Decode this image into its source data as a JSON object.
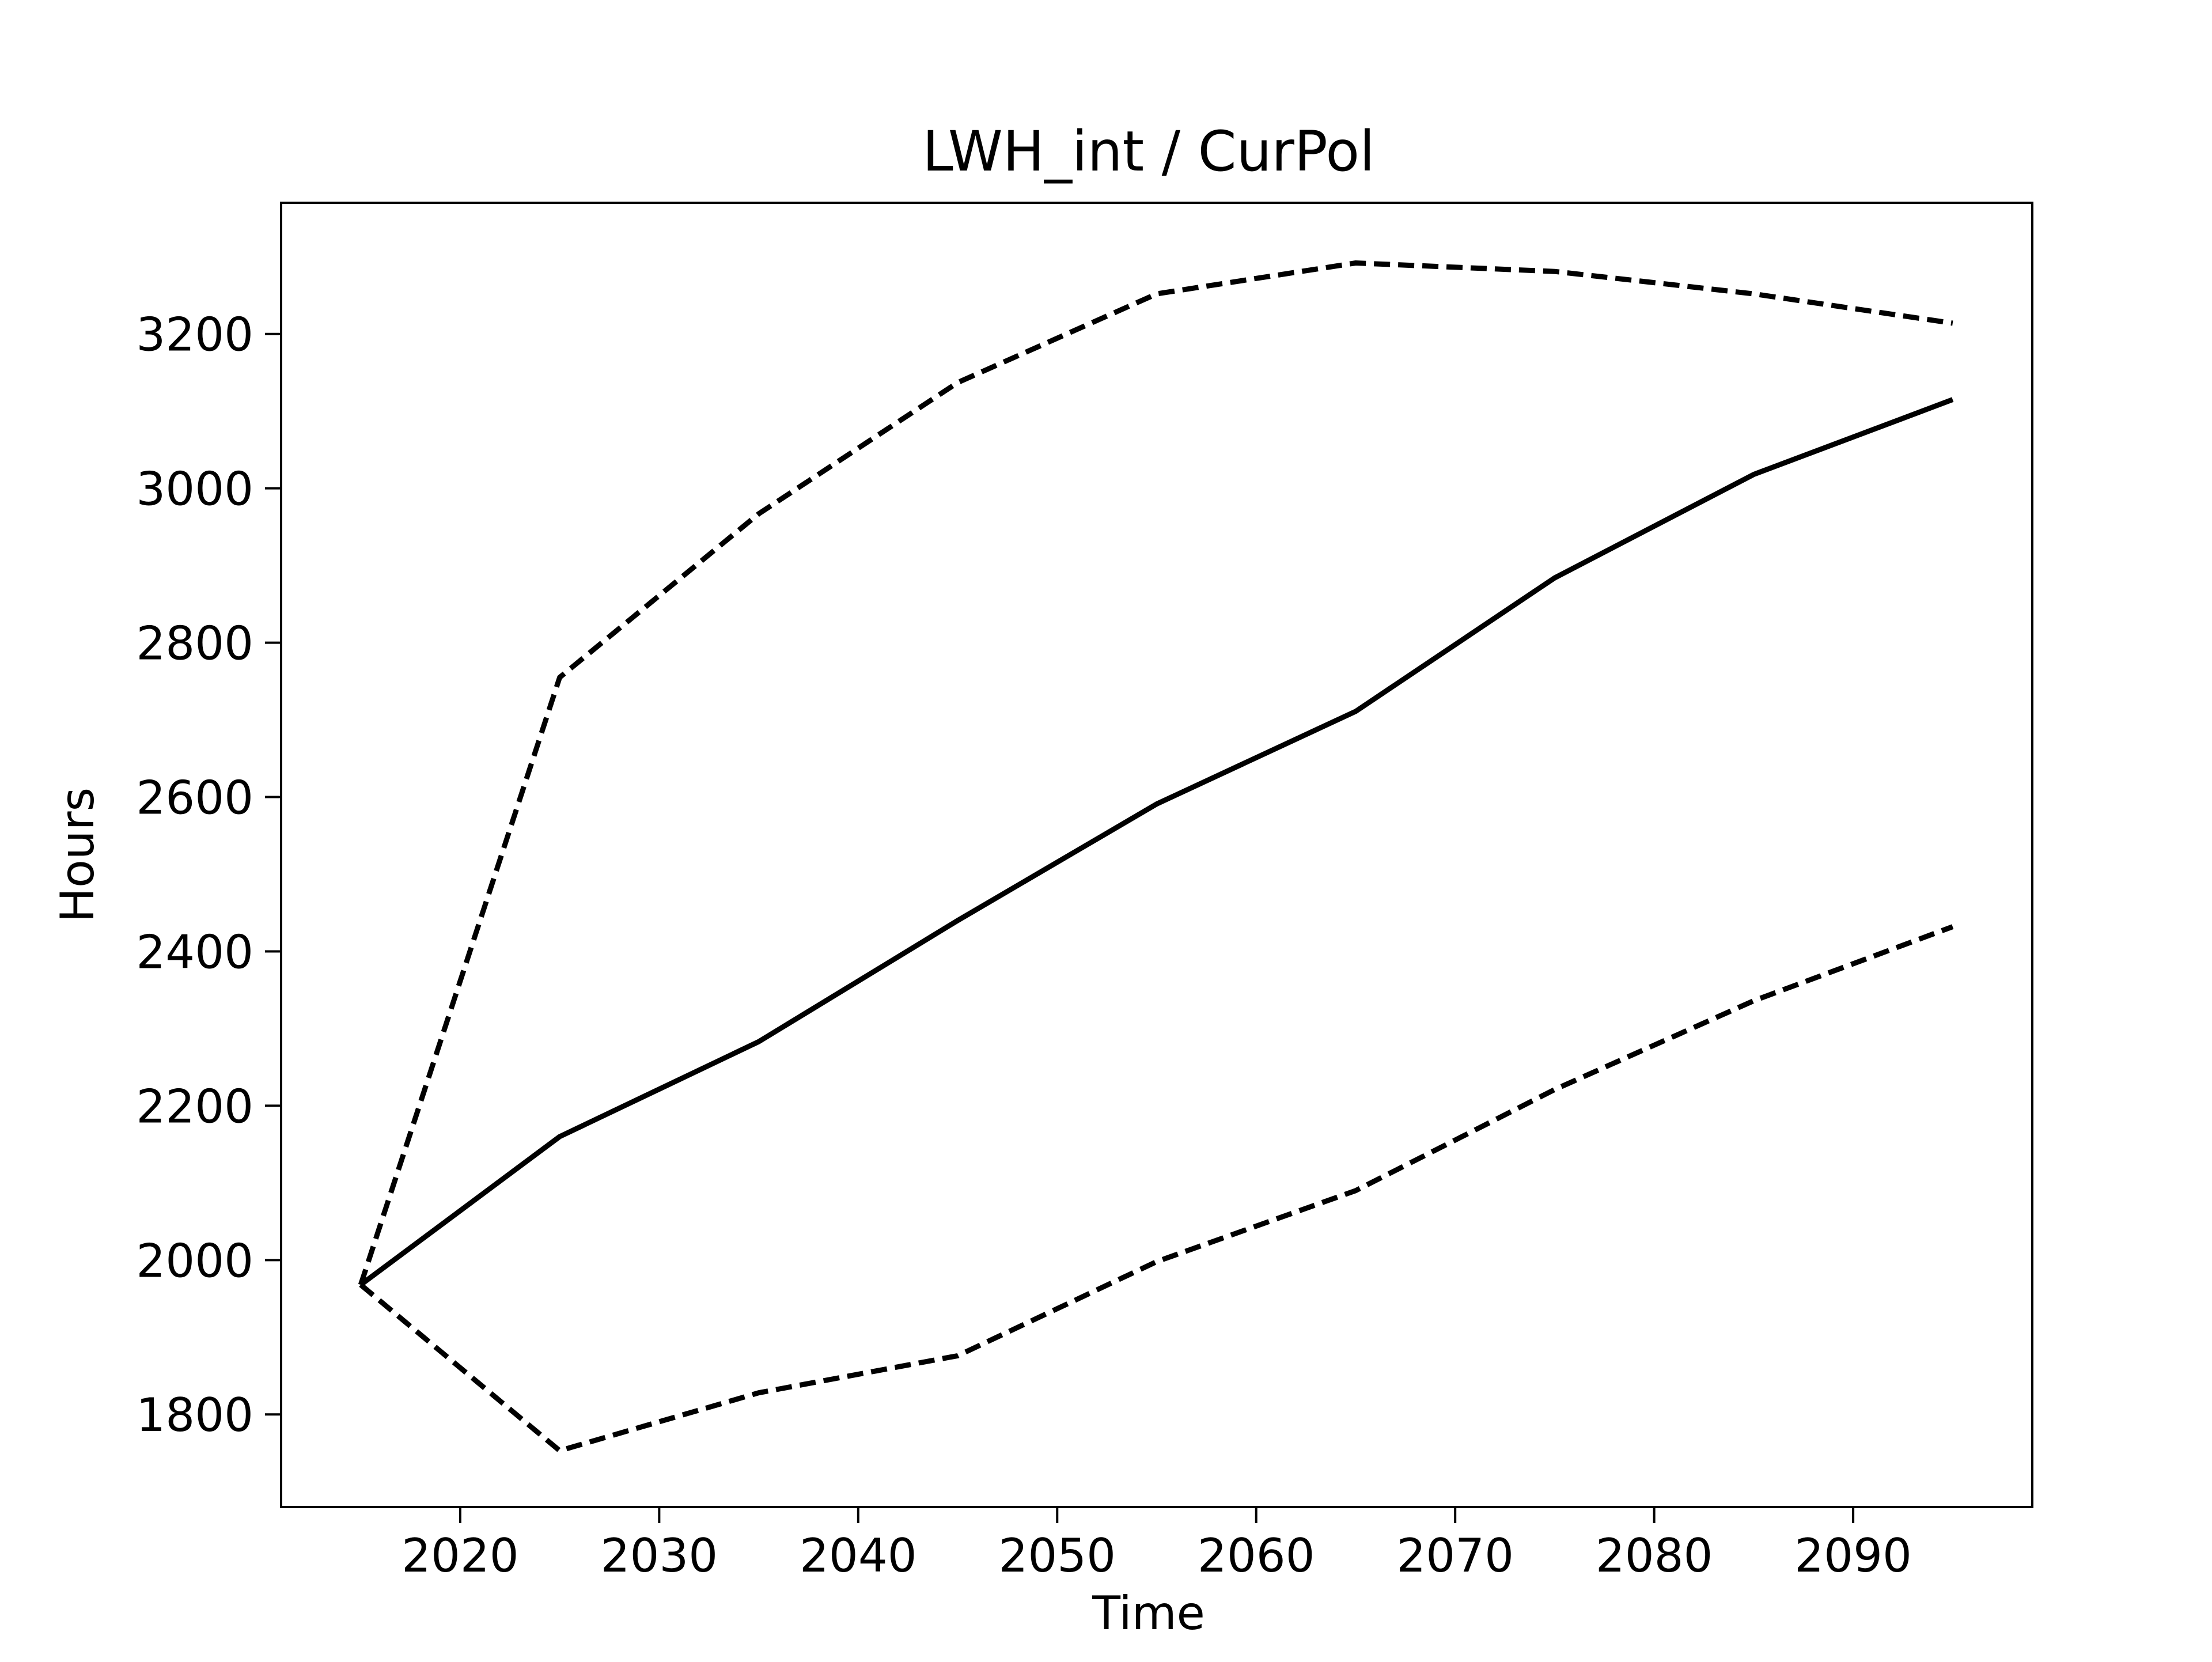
{
  "chart_data": {
    "type": "line",
    "title": "LWH_int / CurPol",
    "xlabel": "Time",
    "ylabel": "Hours",
    "xlim": [
      2011,
      2099
    ],
    "ylim": [
      1680,
      3370
    ],
    "xticks": [
      2020,
      2030,
      2040,
      2050,
      2060,
      2070,
      2080,
      2090
    ],
    "yticks": [
      1800,
      2000,
      2200,
      2400,
      2600,
      2800,
      3000,
      3200
    ],
    "grid": false,
    "legend": "none",
    "x": [
      2015,
      2025,
      2035,
      2045,
      2055,
      2065,
      2075,
      2085,
      2095
    ],
    "series": [
      {
        "style": "solid",
        "color": "#000000",
        "values": [
          1968,
          2160,
          2283,
          2440,
          2591,
          2711,
          2884,
          3018,
          3115
        ]
      },
      {
        "style": "dashed",
        "color": "#000000",
        "values": [
          1968,
          2755,
          2967,
          3137,
          3252,
          3292,
          3281,
          3252,
          3214
        ]
      },
      {
        "style": "dashed",
        "color": "#000000",
        "values": [
          1968,
          1753,
          1828,
          1876,
          1998,
          2090,
          2221,
          2336,
          2432
        ]
      }
    ]
  }
}
